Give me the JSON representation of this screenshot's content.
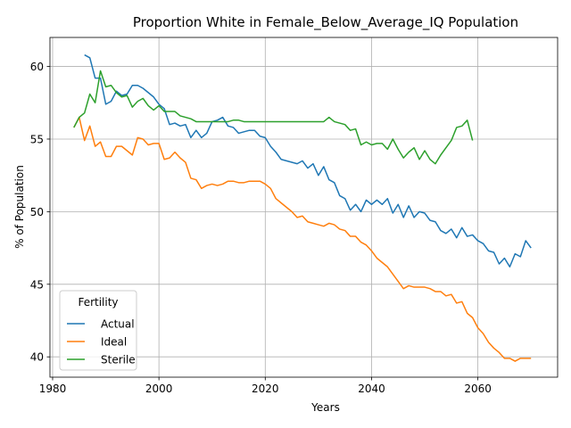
{
  "chart_data": {
    "type": "line",
    "title": "Proportion White in Female_Below_Average_IQ Population",
    "xlabel": "Years",
    "ylabel": "% of Population",
    "xlim": [
      1979.5,
      2075
    ],
    "ylim": [
      38.6,
      62.0
    ],
    "xticks": [
      1980,
      2000,
      2020,
      2040,
      2060
    ],
    "yticks": [
      40,
      45,
      50,
      55,
      60
    ],
    "grid": true,
    "legend": {
      "title": "Fertility",
      "position": "lower-left"
    },
    "series": [
      {
        "name": "Actual",
        "color": "#1f77b4",
        "x": [
          1986,
          1987,
          1988,
          1989,
          1990,
          1991,
          1992,
          1993,
          1994,
          1995,
          1996,
          1997,
          1998,
          1999,
          2000,
          2001,
          2002,
          2003,
          2004,
          2005,
          2006,
          2007,
          2008,
          2009,
          2010,
          2011,
          2012,
          2013,
          2014,
          2015,
          2016,
          2017,
          2018,
          2019,
          2020,
          2021,
          2022,
          2023,
          2024,
          2025,
          2026,
          2027,
          2028,
          2029,
          2030,
          2031,
          2032,
          2033,
          2034,
          2035,
          2036,
          2037,
          2038,
          2039,
          2040,
          2041,
          2042,
          2043,
          2044,
          2045,
          2046,
          2047,
          2048,
          2049,
          2050,
          2051,
          2052,
          2053,
          2054,
          2055,
          2056,
          2057,
          2058,
          2059,
          2060,
          2061,
          2062,
          2063,
          2064,
          2065,
          2066,
          2067,
          2068,
          2069,
          2070
        ],
        "values": [
          60.8,
          60.6,
          59.2,
          59.2,
          57.4,
          57.6,
          58.3,
          58.0,
          58.1,
          58.7,
          58.7,
          58.5,
          58.2,
          57.9,
          57.4,
          57.1,
          56.0,
          56.1,
          55.9,
          56.0,
          55.1,
          55.6,
          55.1,
          55.4,
          56.2,
          56.3,
          56.5,
          55.9,
          55.8,
          55.4,
          55.5,
          55.6,
          55.6,
          55.2,
          55.1,
          54.5,
          54.1,
          53.6,
          53.5,
          53.4,
          53.3,
          53.5,
          53.0,
          53.3,
          52.5,
          53.1,
          52.2,
          52.0,
          51.1,
          50.9,
          50.1,
          50.5,
          50.0,
          50.8,
          50.5,
          50.8,
          50.5,
          50.9,
          49.9,
          50.5,
          49.6,
          50.4,
          49.6,
          50.0,
          49.9,
          49.4,
          49.3,
          48.7,
          48.5,
          48.8,
          48.2,
          48.9,
          48.3,
          48.4,
          48.0,
          47.8,
          47.3,
          47.2,
          46.4,
          46.8,
          46.2,
          47.1,
          46.9,
          48.0,
          47.5
        ]
      },
      {
        "name": "Ideal",
        "color": "#ff7f0e",
        "x": [
          1984,
          1985,
          1986,
          1987,
          1988,
          1989,
          1990,
          1991,
          1992,
          1993,
          1994,
          1995,
          1996,
          1997,
          1998,
          1999,
          2000,
          2001,
          2002,
          2003,
          2004,
          2005,
          2006,
          2007,
          2008,
          2009,
          2010,
          2011,
          2012,
          2013,
          2014,
          2015,
          2016,
          2017,
          2018,
          2019,
          2020,
          2021,
          2022,
          2023,
          2024,
          2025,
          2026,
          2027,
          2028,
          2029,
          2030,
          2031,
          2032,
          2033,
          2034,
          2035,
          2036,
          2037,
          2038,
          2039,
          2040,
          2041,
          2042,
          2043,
          2044,
          2045,
          2046,
          2047,
          2048,
          2049,
          2050,
          2051,
          2052,
          2053,
          2054,
          2055,
          2056,
          2057,
          2058,
          2059,
          2060,
          2061,
          2062,
          2063,
          2064,
          2065,
          2066,
          2067,
          2068,
          2069,
          2070
        ],
        "values": [
          55.8,
          56.5,
          54.9,
          55.9,
          54.5,
          54.8,
          53.8,
          53.8,
          54.5,
          54.5,
          54.2,
          53.9,
          55.1,
          55.0,
          54.6,
          54.7,
          54.7,
          53.6,
          53.7,
          54.1,
          53.7,
          53.4,
          52.3,
          52.2,
          51.6,
          51.8,
          51.9,
          51.8,
          51.9,
          52.1,
          52.1,
          52.0,
          52.0,
          52.1,
          52.1,
          52.1,
          51.9,
          51.6,
          50.9,
          50.6,
          50.3,
          50.0,
          49.6,
          49.7,
          49.3,
          49.2,
          49.1,
          49.0,
          49.2,
          49.1,
          48.8,
          48.7,
          48.3,
          48.3,
          47.9,
          47.7,
          47.3,
          46.8,
          46.5,
          46.2,
          45.7,
          45.2,
          44.7,
          44.9,
          44.8,
          44.8,
          44.8,
          44.7,
          44.5,
          44.5,
          44.2,
          44.3,
          43.7,
          43.8,
          43.0,
          42.7,
          42.0,
          41.6,
          41.0,
          40.6,
          40.3,
          39.9,
          39.9,
          39.7,
          39.9,
          39.9,
          39.9
        ]
      },
      {
        "name": "Sterile",
        "color": "#2ca02c",
        "x": [
          1984,
          1985,
          1986,
          1987,
          1988,
          1989,
          1990,
          1991,
          1992,
          1993,
          1994,
          1995,
          1996,
          1997,
          1998,
          1999,
          2000,
          2001,
          2002,
          2003,
          2004,
          2005,
          2006,
          2007,
          2008,
          2009,
          2010,
          2011,
          2012,
          2013,
          2014,
          2015,
          2016,
          2017,
          2018,
          2019,
          2020,
          2021,
          2022,
          2023,
          2024,
          2025,
          2026,
          2027,
          2028,
          2029,
          2030,
          2031,
          2032,
          2033,
          2034,
          2035,
          2036,
          2037,
          2038,
          2039,
          2040,
          2041,
          2042,
          2043,
          2044,
          2045,
          2046,
          2047,
          2048,
          2049,
          2050,
          2051,
          2052,
          2053,
          2054,
          2055,
          2056,
          2057,
          2058,
          2059
        ],
        "values": [
          55.8,
          56.5,
          56.8,
          58.1,
          57.5,
          59.7,
          58.6,
          58.7,
          58.2,
          57.9,
          58.0,
          57.2,
          57.6,
          57.8,
          57.3,
          57.0,
          57.3,
          56.9,
          56.9,
          56.9,
          56.6,
          56.5,
          56.4,
          56.2,
          56.2,
          56.2,
          56.2,
          56.2,
          56.2,
          56.2,
          56.3,
          56.3,
          56.2,
          56.2,
          56.2,
          56.2,
          56.2,
          56.2,
          56.2,
          56.2,
          56.2,
          56.2,
          56.2,
          56.2,
          56.2,
          56.2,
          56.2,
          56.2,
          56.5,
          56.2,
          56.1,
          56.0,
          55.6,
          55.7,
          54.6,
          54.8,
          54.6,
          54.7,
          54.7,
          54.3,
          55.0,
          54.3,
          53.7,
          54.1,
          54.4,
          53.6,
          54.2,
          53.6,
          53.3,
          53.9,
          54.4,
          54.9,
          55.8,
          55.9,
          56.3,
          54.9
        ]
      }
    ]
  }
}
